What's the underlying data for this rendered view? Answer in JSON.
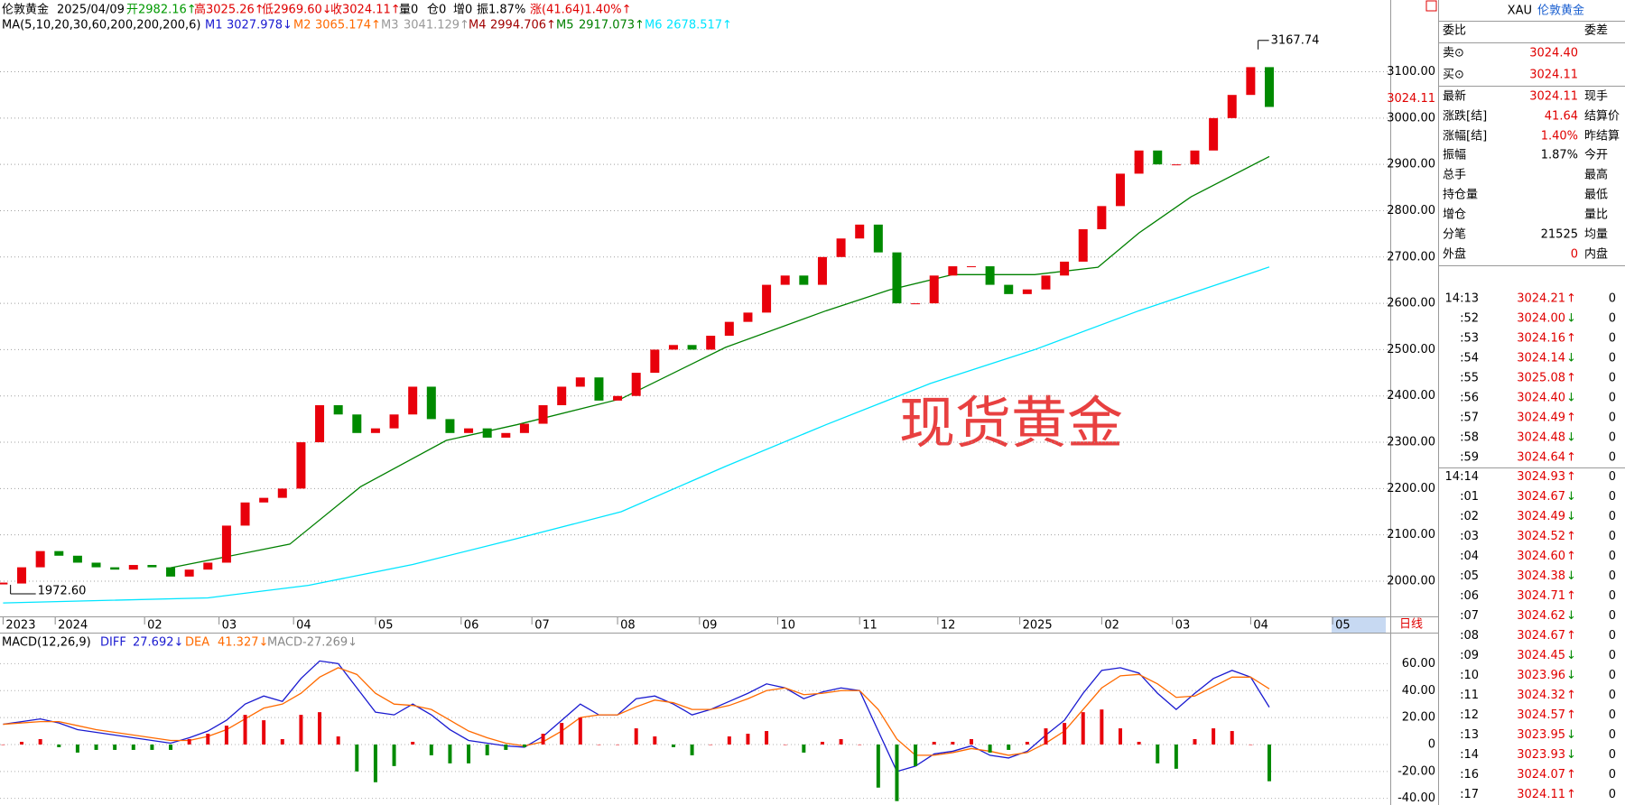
{
  "header": {
    "items": [
      {
        "text": "伦敦黄金",
        "color": "#000000"
      },
      {
        "text": "2025/04/09",
        "color": "#000000"
      },
      {
        "text": "开2982.16↑",
        "color": "#009900"
      },
      {
        "text": "高3025.26↑",
        "color": "#e00000"
      },
      {
        "text": "低2969.60↓",
        "color": "#e00000"
      },
      {
        "text": "收3024.11↑",
        "color": "#e00000"
      },
      {
        "text": "量0",
        "color": "#000000"
      },
      {
        "text": "仓0",
        "color": "#000000"
      },
      {
        "text": "增0",
        "color": "#000000"
      },
      {
        "text": "振1.87%",
        "color": "#000000"
      },
      {
        "text": "涨(41.64)1.40%↑",
        "color": "#e00000"
      }
    ]
  },
  "chart_data": [
    {
      "type": "candlestick",
      "title": "MA(5,10,20,30,60,200,200,200,6)",
      "watermark": "现货黄金",
      "up_color": "#e8000b",
      "down_color": "#008a00",
      "grid": true,
      "x": [
        0,
        5,
        10,
        15,
        20,
        25,
        30,
        35,
        40,
        45,
        50,
        55,
        60,
        65,
        70,
        75,
        80,
        85,
        90,
        95,
        100,
        105,
        110,
        115,
        120,
        125,
        130,
        135,
        140,
        145,
        150,
        155,
        160,
        165,
        170,
        175,
        180,
        185,
        190,
        195,
        200,
        205,
        210,
        215,
        220,
        225,
        230,
        235,
        240,
        245,
        250,
        255,
        260,
        265,
        270,
        275,
        280,
        285,
        290,
        295,
        300,
        305,
        310,
        315,
        320,
        325,
        330,
        335,
        340
      ],
      "values": [
        1995,
        2030,
        2065,
        2055,
        2040,
        2030,
        2025,
        2035,
        2030,
        2010,
        2025,
        2040,
        2120,
        2170,
        2180,
        2200,
        2300,
        2380,
        2360,
        2320,
        2330,
        2360,
        2420,
        2350,
        2320,
        2330,
        2310,
        2320,
        2340,
        2380,
        2420,
        2440,
        2390,
        2400,
        2450,
        2500,
        2510,
        2500,
        2530,
        2560,
        2580,
        2640,
        2660,
        2640,
        2700,
        2740,
        2770,
        2710,
        2600,
        2600,
        2660,
        2680,
        2680,
        2640,
        2620,
        2630,
        2660,
        2690,
        2760,
        2810,
        2880,
        2930,
        2900,
        2900,
        2930,
        3000,
        3050,
        3110,
        3024.11
      ],
      "series": [
        {
          "name": "M1",
          "label": "3027.978↓",
          "color": "#1a1ad0"
        },
        {
          "name": "M2",
          "label": "3065.174↑",
          "color": "#ff6a00"
        },
        {
          "name": "M3",
          "label": "3041.129↑",
          "color": "#999999"
        },
        {
          "name": "M4",
          "label": "2994.706↑",
          "color": "#a00000"
        },
        {
          "name": "M5",
          "label": "2917.073↑",
          "color": "#008000",
          "x": [
            45,
            77,
            96,
            119,
            138,
            166,
            194,
            221,
            238,
            255,
            277,
            294,
            305,
            319,
            340
          ],
          "values": [
            2029,
            2080,
            2204,
            2304,
            2338,
            2394,
            2505,
            2584,
            2629,
            2662,
            2662,
            2678,
            2752,
            2830,
            2917.073
          ]
        },
        {
          "name": "M6",
          "label": "2678.517↑",
          "color": "#00e5ff",
          "x": [
            0,
            55,
            82,
            110,
            138,
            166,
            194,
            221,
            249,
            277,
            305,
            340
          ],
          "values": [
            1953,
            1964,
            1991,
            2036,
            2092,
            2150,
            2248,
            2338,
            2427,
            2500,
            2584,
            2678.517
          ]
        }
      ],
      "high": {
        "x": 337,
        "value": 3167.74,
        "label": "3167.74"
      },
      "low": {
        "x": 2,
        "value": 1972.6,
        "label": "1972.60"
      },
      "last": {
        "value": 3024.11,
        "label": "3024.11"
      },
      "period": "日线",
      "xlim": [
        0,
        372
      ],
      "xticks": [
        {
          "value": 0,
          "label": "2023"
        },
        {
          "value": 14,
          "label": "2024"
        },
        {
          "value": 38,
          "label": "02"
        },
        {
          "value": 58,
          "label": "03"
        },
        {
          "value": 78,
          "label": "04"
        },
        {
          "value": 100,
          "label": "05"
        },
        {
          "value": 123,
          "label": "06"
        },
        {
          "value": 142,
          "label": "07"
        },
        {
          "value": 165,
          "label": "08"
        },
        {
          "value": 187,
          "label": "09"
        },
        {
          "value": 208,
          "label": "10"
        },
        {
          "value": 230,
          "label": "11"
        },
        {
          "value": 251,
          "label": "12"
        },
        {
          "value": 273,
          "label": "2025"
        },
        {
          "value": 295,
          "label": "02"
        },
        {
          "value": 314,
          "label": "03"
        },
        {
          "value": 335,
          "label": "04"
        },
        {
          "value": 357,
          "label": "05"
        }
      ],
      "ylim": [
        1924,
        3255
      ],
      "yticks": [
        {
          "value": 2000,
          "label": "2000.00"
        },
        {
          "value": 2100,
          "label": "2100.00"
        },
        {
          "value": 2200,
          "label": "2200.00"
        },
        {
          "value": 2300,
          "label": "2300.00"
        },
        {
          "value": 2400,
          "label": "2400.00"
        },
        {
          "value": 2500,
          "label": "2500.00"
        },
        {
          "value": 2600,
          "label": "2600.00"
        },
        {
          "value": 2700,
          "label": "2700.00"
        },
        {
          "value": 2800,
          "label": "2800.00"
        },
        {
          "value": 2900,
          "label": "2900.00"
        },
        {
          "value": 3000,
          "label": "3000.00"
        },
        {
          "value": 3100,
          "label": "3100.00"
        }
      ]
    },
    {
      "type": "macd",
      "title": "MACD(12,26,9)",
      "up_color": "#e8000b",
      "down_color": "#008a00",
      "x": [
        0,
        5,
        10,
        15,
        20,
        25,
        30,
        35,
        40,
        45,
        50,
        55,
        60,
        65,
        70,
        75,
        80,
        85,
        90,
        95,
        100,
        105,
        110,
        115,
        120,
        125,
        130,
        135,
        140,
        145,
        150,
        155,
        160,
        165,
        170,
        175,
        180,
        185,
        190,
        195,
        200,
        205,
        210,
        215,
        220,
        225,
        230,
        235,
        240,
        245,
        250,
        255,
        260,
        265,
        270,
        275,
        280,
        285,
        290,
        295,
        300,
        305,
        310,
        315,
        320,
        325,
        330,
        335,
        340
      ],
      "series": [
        {
          "name": "DIFF",
          "label": "27.692↓",
          "color": "#1a1ad0",
          "style": "line",
          "values": [
            15,
            17,
            19,
            16,
            11,
            9,
            7,
            5,
            3,
            1,
            5,
            10,
            18,
            30,
            36,
            32,
            49,
            62,
            60,
            42,
            24,
            22,
            30,
            22,
            11,
            3,
            1,
            -1,
            -2,
            6,
            18,
            30,
            22,
            22,
            34,
            36,
            30,
            22,
            26,
            32,
            38,
            45,
            42,
            34,
            39,
            42,
            40,
            10,
            -20,
            -16,
            -7,
            -5,
            -1,
            -8,
            -10,
            -5,
            7,
            18,
            38,
            55,
            57,
            53,
            38,
            26,
            38,
            49,
            55,
            50,
            27.692
          ]
        },
        {
          "name": "DEA",
          "label": "41.327↓",
          "color": "#ff6a00",
          "style": "line",
          "values": [
            15,
            16,
            17,
            17,
            14,
            11,
            9,
            7,
            5,
            3,
            3,
            6,
            11,
            19,
            27,
            30,
            38,
            50,
            57,
            52,
            38,
            30,
            29,
            26,
            18,
            10,
            5,
            1,
            -1,
            2,
            10,
            20,
            22,
            22,
            28,
            33,
            31,
            26,
            26,
            29,
            34,
            40,
            42,
            37,
            38,
            40,
            40,
            26,
            4,
            -8,
            -8,
            -6,
            -3,
            -5,
            -8,
            -6,
            1,
            10,
            26,
            42,
            51,
            52,
            45,
            35,
            36,
            43,
            50,
            50,
            41.327
          ]
        },
        {
          "name": "MACD",
          "label": "-27.269↓",
          "color": "#888888",
          "style": "bar",
          "values": [
            0,
            2,
            4,
            -2,
            -6,
            -4,
            -4,
            -4,
            -4,
            -4,
            4,
            8,
            14,
            22,
            18,
            4,
            22,
            24,
            6,
            -20,
            -28,
            -16,
            2,
            -8,
            -14,
            -14,
            -8,
            -4,
            -2,
            8,
            16,
            20,
            0,
            0,
            12,
            6,
            -2,
            -8,
            0,
            6,
            8,
            10,
            0,
            -6,
            2,
            4,
            0,
            -32,
            -42,
            -16,
            2,
            2,
            4,
            -6,
            -4,
            2,
            12,
            16,
            24,
            26,
            12,
            2,
            -14,
            -18,
            4,
            12,
            10,
            0,
            -27.269
          ]
        }
      ],
      "xlim": [
        0,
        372
      ],
      "ylim": [
        -44.9,
        81.7
      ],
      "yticks": [
        {
          "value": 60,
          "label": "60.00"
        },
        {
          "value": 40,
          "label": "40.00"
        },
        {
          "value": 20,
          "label": "20.00"
        },
        0,
        {
          "value": -20,
          "label": "-20.00"
        },
        {
          "value": -40,
          "label": "-40.00"
        }
      ]
    }
  ],
  "quote": {
    "symbol": "XAU",
    "name": "伦敦黄金",
    "rows": [
      {
        "label": "委比",
        "right": "委差"
      },
      {
        "label": "卖⊙",
        "value": "3024.40",
        "color": "#e00000"
      },
      {
        "label": "买⊙",
        "value": "3024.11",
        "color": "#e00000"
      },
      {
        "label": "最新",
        "value": "3024.11",
        "color": "#e00000",
        "right": "现手"
      },
      {
        "label": "涨跌[结]",
        "value": "41.64",
        "color": "#e00000",
        "right": "结算价"
      },
      {
        "label": "涨幅[结]",
        "value": "1.40%",
        "color": "#e00000",
        "right": "昨结算"
      },
      {
        "label": "振幅",
        "value": "1.87%",
        "color": "#000000",
        "right": "今开"
      },
      {
        "label": "总手",
        "right": "最高"
      },
      {
        "label": "持仓量",
        "right": "最低"
      },
      {
        "label": "增仓",
        "right": "量比"
      },
      {
        "label": "分笔",
        "value": "21525",
        "color": "#000000",
        "right": "均量"
      },
      {
        "label": "外盘",
        "value": "0",
        "color": "#e00000",
        "right": "内盘"
      }
    ]
  },
  "ticks": {
    "arrow_colors": {
      "↑": "#e00000",
      "↓": "#008a00"
    },
    "price_color": "#e00000",
    "rows": [
      {
        "time": "14:13",
        "price": "3024.21",
        "dir": "↑",
        "vol": "0"
      },
      {
        "time": ":52",
        "price": "3024.00",
        "dir": "↓",
        "vol": "0"
      },
      {
        "time": ":53",
        "price": "3024.16",
        "dir": "↑",
        "vol": "0"
      },
      {
        "time": ":54",
        "price": "3024.14",
        "dir": "↓",
        "vol": "0"
      },
      {
        "time": ":55",
        "price": "3025.08",
        "dir": "↑",
        "vol": "0"
      },
      {
        "time": ":56",
        "price": "3024.40",
        "dir": "↓",
        "vol": "0"
      },
      {
        "time": ":57",
        "price": "3024.49",
        "dir": "↑",
        "vol": "0"
      },
      {
        "time": ":58",
        "price": "3024.48",
        "dir": "↓",
        "vol": "0"
      },
      {
        "time": ":59",
        "price": "3024.64",
        "dir": "↑",
        "vol": "0"
      },
      {
        "time": "14:14",
        "price": "3024.93",
        "dir": "↑",
        "vol": "0"
      },
      {
        "time": ":01",
        "price": "3024.67",
        "dir": "↓",
        "vol": "0"
      },
      {
        "time": ":02",
        "price": "3024.49",
        "dir": "↓",
        "vol": "0"
      },
      {
        "time": ":03",
        "price": "3024.52",
        "dir": "↑",
        "vol": "0"
      },
      {
        "time": ":04",
        "price": "3024.60",
        "dir": "↑",
        "vol": "0"
      },
      {
        "time": ":05",
        "price": "3024.38",
        "dir": "↓",
        "vol": "0"
      },
      {
        "time": ":06",
        "price": "3024.71",
        "dir": "↑",
        "vol": "0"
      },
      {
        "time": ":07",
        "price": "3024.62",
        "dir": "↓",
        "vol": "0"
      },
      {
        "time": ":08",
        "price": "3024.67",
        "dir": "↑",
        "vol": "0"
      },
      {
        "time": ":09",
        "price": "3024.45",
        "dir": "↓",
        "vol": "0"
      },
      {
        "time": ":10",
        "price": "3023.96",
        "dir": "↓",
        "vol": "0"
      },
      {
        "time": ":11",
        "price": "3024.32",
        "dir": "↑",
        "vol": "0"
      },
      {
        "time": ":12",
        "price": "3024.57",
        "dir": "↑",
        "vol": "0"
      },
      {
        "time": ":13",
        "price": "3023.95",
        "dir": "↓",
        "vol": "0"
      },
      {
        "time": ":14",
        "price": "3023.93",
        "dir": "↓",
        "vol": "0"
      },
      {
        "time": ":16",
        "price": "3024.07",
        "dir": "↑",
        "vol": "0"
      },
      {
        "time": ":17",
        "price": "3024.11",
        "dir": "↑",
        "vol": "0"
      }
    ]
  }
}
